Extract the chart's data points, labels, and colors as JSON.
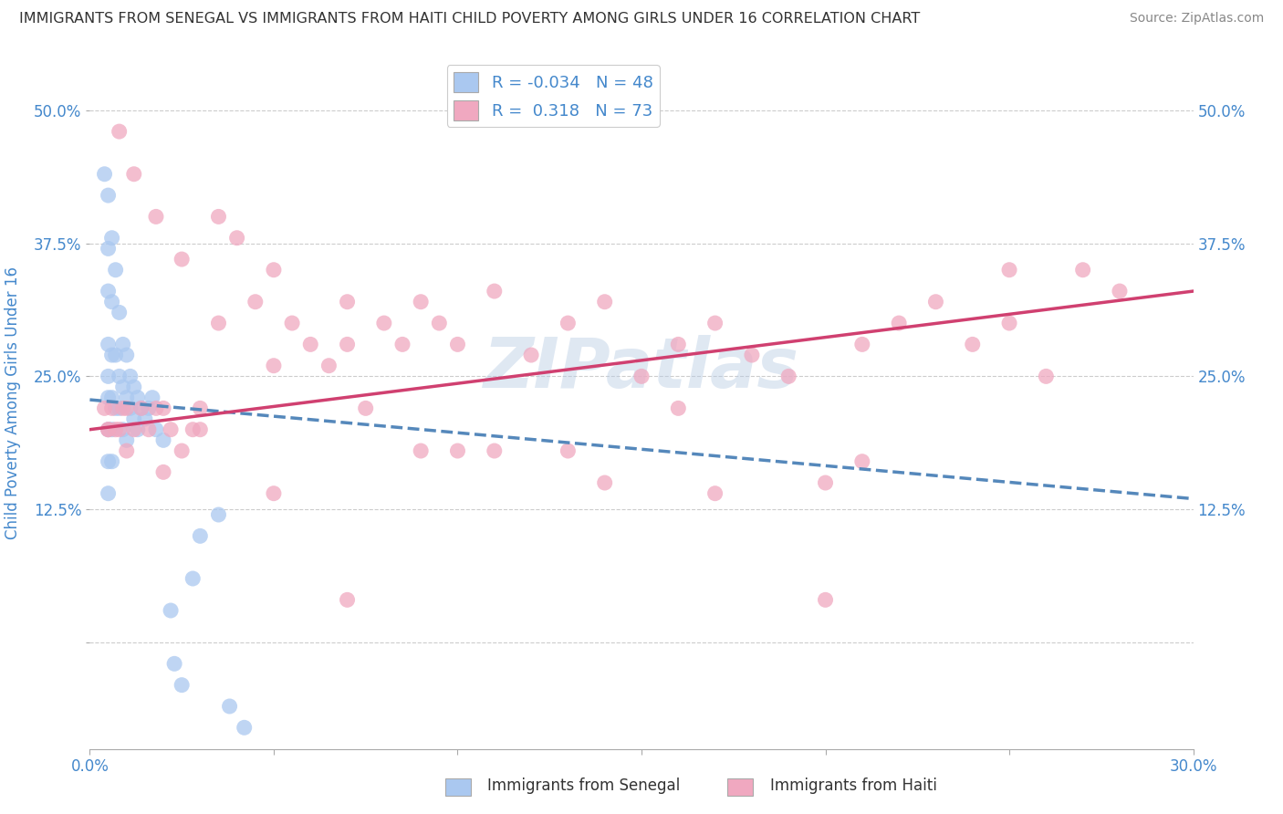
{
  "title": "IMMIGRANTS FROM SENEGAL VS IMMIGRANTS FROM HAITI CHILD POVERTY AMONG GIRLS UNDER 16 CORRELATION CHART",
  "source": "Source: ZipAtlas.com",
  "ylabel": "Child Poverty Among Girls Under 16",
  "xlabel_senegal": "Immigrants from Senegal",
  "xlabel_haiti": "Immigrants from Haiti",
  "watermark": "ZIPatlas",
  "senegal_R": -0.034,
  "senegal_N": 48,
  "haiti_R": 0.318,
  "haiti_N": 73,
  "xmin": 0.0,
  "xmax": 0.3,
  "ymin": -0.1,
  "ymax": 0.55,
  "yticks": [
    0.0,
    0.125,
    0.25,
    0.375,
    0.5
  ],
  "ytick_labels": [
    "",
    "12.5%",
    "25.0%",
    "37.5%",
    "50.0%"
  ],
  "xticks": [
    0.0,
    0.05,
    0.1,
    0.15,
    0.2,
    0.25,
    0.3
  ],
  "xtick_labels": [
    "0.0%",
    "",
    "",
    "",
    "",
    "",
    "30.0%"
  ],
  "color_senegal": "#aac8f0",
  "color_haiti": "#f0a8c0",
  "line_color_senegal": "#5588bb",
  "line_color_haiti": "#d04070",
  "background_color": "#ffffff",
  "grid_color": "#cccccc",
  "title_color": "#333333",
  "legend_text_color": "#4488cc",
  "axis_label_color": "#4488cc",
  "senegal_points_x": [
    0.004,
    0.005,
    0.005,
    0.005,
    0.005,
    0.005,
    0.005,
    0.005,
    0.005,
    0.005,
    0.006,
    0.006,
    0.006,
    0.006,
    0.006,
    0.006,
    0.007,
    0.007,
    0.007,
    0.008,
    0.008,
    0.008,
    0.009,
    0.009,
    0.009,
    0.01,
    0.01,
    0.01,
    0.011,
    0.011,
    0.012,
    0.012,
    0.013,
    0.013,
    0.014,
    0.015,
    0.016,
    0.017,
    0.018,
    0.02,
    0.022,
    0.023,
    0.025,
    0.028,
    0.03,
    0.035,
    0.038,
    0.042
  ],
  "senegal_points_y": [
    0.44,
    0.42,
    0.37,
    0.33,
    0.28,
    0.25,
    0.23,
    0.2,
    0.17,
    0.14,
    0.38,
    0.32,
    0.27,
    0.23,
    0.2,
    0.17,
    0.35,
    0.27,
    0.22,
    0.31,
    0.25,
    0.22,
    0.28,
    0.24,
    0.2,
    0.27,
    0.23,
    0.19,
    0.25,
    0.22,
    0.24,
    0.21,
    0.23,
    0.2,
    0.22,
    0.21,
    0.22,
    0.23,
    0.2,
    0.19,
    0.03,
    -0.02,
    -0.04,
    0.06,
    0.1,
    0.12,
    -0.06,
    -0.08
  ],
  "haiti_points_x": [
    0.004,
    0.005,
    0.006,
    0.007,
    0.008,
    0.009,
    0.01,
    0.012,
    0.014,
    0.016,
    0.018,
    0.02,
    0.022,
    0.025,
    0.028,
    0.03,
    0.035,
    0.04,
    0.045,
    0.05,
    0.055,
    0.06,
    0.065,
    0.07,
    0.075,
    0.08,
    0.085,
    0.09,
    0.095,
    0.1,
    0.11,
    0.12,
    0.13,
    0.14,
    0.15,
    0.16,
    0.17,
    0.18,
    0.19,
    0.2,
    0.21,
    0.22,
    0.23,
    0.24,
    0.25,
    0.26,
    0.27,
    0.28,
    0.008,
    0.012,
    0.018,
    0.025,
    0.035,
    0.05,
    0.07,
    0.09,
    0.11,
    0.14,
    0.17,
    0.21,
    0.25,
    0.005,
    0.01,
    0.02,
    0.03,
    0.05,
    0.07,
    0.1,
    0.13,
    0.16,
    0.2
  ],
  "haiti_points_y": [
    0.22,
    0.2,
    0.22,
    0.2,
    0.2,
    0.22,
    0.22,
    0.2,
    0.22,
    0.2,
    0.22,
    0.22,
    0.2,
    0.18,
    0.2,
    0.22,
    0.4,
    0.38,
    0.32,
    0.35,
    0.3,
    0.28,
    0.26,
    0.32,
    0.22,
    0.3,
    0.28,
    0.32,
    0.3,
    0.28,
    0.33,
    0.27,
    0.3,
    0.32,
    0.25,
    0.28,
    0.3,
    0.27,
    0.25,
    0.15,
    0.28,
    0.3,
    0.32,
    0.28,
    0.3,
    0.25,
    0.35,
    0.33,
    0.48,
    0.44,
    0.4,
    0.36,
    0.3,
    0.26,
    0.28,
    0.18,
    0.18,
    0.15,
    0.14,
    0.17,
    0.35,
    0.2,
    0.18,
    0.16,
    0.2,
    0.14,
    0.04,
    0.18,
    0.18,
    0.22,
    0.04
  ],
  "senegal_line_x": [
    0.0,
    0.3
  ],
  "senegal_line_y": [
    0.228,
    0.135
  ],
  "haiti_line_x": [
    0.0,
    0.3
  ],
  "haiti_line_y": [
    0.2,
    0.33
  ]
}
